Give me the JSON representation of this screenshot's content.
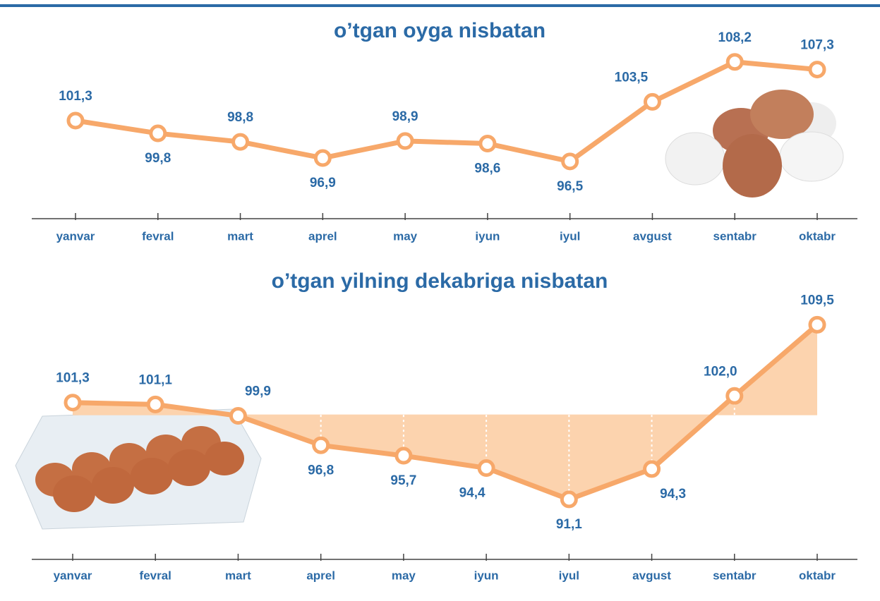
{
  "chart_data": [
    {
      "type": "line",
      "title": "o’tgan oyga nisbatan",
      "categories": [
        "yanvar",
        "fevral",
        "mart",
        "aprel",
        "may",
        "iyun",
        "iyul",
        "avgust",
        "sentabr",
        "oktabr"
      ],
      "values": [
        101.3,
        99.8,
        98.8,
        96.9,
        98.9,
        98.6,
        96.5,
        103.5,
        108.2,
        107.3
      ],
      "value_labels": [
        "101,3",
        "99,8",
        "98,8",
        "96,9",
        "98,9",
        "98,6",
        "96,5",
        "103,5",
        "108,2",
        "107,3"
      ],
      "color": "#f7a86a",
      "ylim": [
        90.6,
        110.5
      ],
      "area": false
    },
    {
      "type": "line",
      "title": "o’tgan yilning dekabriga nisbatan",
      "categories": [
        "yanvar",
        "fevral",
        "mart",
        "aprel",
        "may",
        "iyun",
        "iyul",
        "avgust",
        "sentabr",
        "oktabr"
      ],
      "values": [
        101.3,
        101.1,
        99.9,
        96.8,
        95.7,
        94.4,
        91.1,
        94.3,
        102.0,
        109.5
      ],
      "value_labels": [
        "101,3",
        "101,1",
        "99,9",
        "96,8",
        "95,7",
        "94,4",
        "91,1",
        "94,3",
        "102,0",
        "109,5"
      ],
      "color": "#f7a86a",
      "ylim": [
        85,
        112.5
      ],
      "area": true,
      "baseline": 100
    }
  ]
}
